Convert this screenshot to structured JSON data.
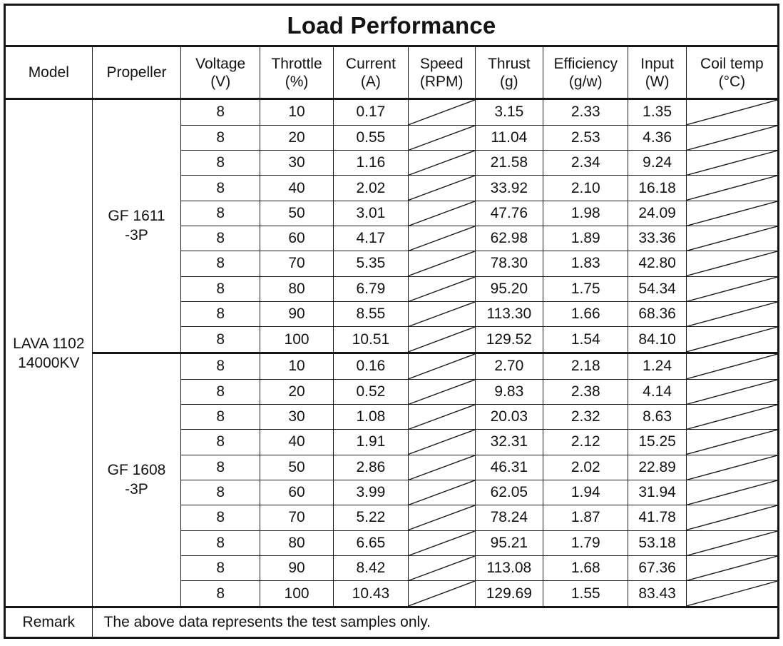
{
  "title": "Load Performance",
  "colors": {
    "border": "#161616",
    "background": "#ffffff",
    "text": "#131313"
  },
  "columns": [
    {
      "label": "Model",
      "unit": ""
    },
    {
      "label": "Propeller",
      "unit": ""
    },
    {
      "label": "Voltage",
      "unit": "(V)"
    },
    {
      "label": "Throttle",
      "unit": "(%)"
    },
    {
      "label": "Current",
      "unit": "(A)"
    },
    {
      "label": "Speed",
      "unit": "(RPM)"
    },
    {
      "label": "Thrust",
      "unit": "(g)"
    },
    {
      "label": "Efficiency",
      "unit": "(g/w)"
    },
    {
      "label": "Input",
      "unit": "(W)"
    },
    {
      "label": "Coil temp",
      "unit": "(°C)"
    }
  ],
  "model": {
    "line1": "LAVA 1102",
    "line2": "14000KV"
  },
  "sections": [
    {
      "propeller": {
        "line1": "GF 1611",
        "line2": "-3P"
      },
      "rows": [
        [
          "8",
          "10",
          "0.17",
          null,
          "3.15",
          "2.33",
          "1.35",
          null
        ],
        [
          "8",
          "20",
          "0.55",
          null,
          "11.04",
          "2.53",
          "4.36",
          null
        ],
        [
          "8",
          "30",
          "1.16",
          null,
          "21.58",
          "2.34",
          "9.24",
          null
        ],
        [
          "8",
          "40",
          "2.02",
          null,
          "33.92",
          "2.10",
          "16.18",
          null
        ],
        [
          "8",
          "50",
          "3.01",
          null,
          "47.76",
          "1.98",
          "24.09",
          null
        ],
        [
          "8",
          "60",
          "4.17",
          null,
          "62.98",
          "1.89",
          "33.36",
          null
        ],
        [
          "8",
          "70",
          "5.35",
          null,
          "78.30",
          "1.83",
          "42.80",
          null
        ],
        [
          "8",
          "80",
          "6.79",
          null,
          "95.20",
          "1.75",
          "54.34",
          null
        ],
        [
          "8",
          "90",
          "8.55",
          null,
          "113.30",
          "1.66",
          "68.36",
          null
        ],
        [
          "8",
          "100",
          "10.51",
          null,
          "129.52",
          "1.54",
          "84.10",
          null
        ]
      ]
    },
    {
      "propeller": {
        "line1": "GF 1608",
        "line2": "-3P"
      },
      "rows": [
        [
          "8",
          "10",
          "0.16",
          null,
          "2.70",
          "2.18",
          "1.24",
          null
        ],
        [
          "8",
          "20",
          "0.52",
          null,
          "9.83",
          "2.38",
          "4.14",
          null
        ],
        [
          "8",
          "30",
          "1.08",
          null,
          "20.03",
          "2.32",
          "8.63",
          null
        ],
        [
          "8",
          "40",
          "1.91",
          null,
          "32.31",
          "2.12",
          "15.25",
          null
        ],
        [
          "8",
          "50",
          "2.86",
          null,
          "46.31",
          "2.02",
          "22.89",
          null
        ],
        [
          "8",
          "60",
          "3.99",
          null,
          "62.05",
          "1.94",
          "31.94",
          null
        ],
        [
          "8",
          "70",
          "5.22",
          null,
          "78.24",
          "1.87",
          "41.78",
          null
        ],
        [
          "8",
          "80",
          "6.65",
          null,
          "95.21",
          "1.79",
          "53.18",
          null
        ],
        [
          "8",
          "90",
          "8.42",
          null,
          "113.08",
          "1.68",
          "67.36",
          null
        ],
        [
          "8",
          "100",
          "10.43",
          null,
          "129.69",
          "1.55",
          "83.43",
          null
        ]
      ]
    }
  ],
  "remark": {
    "label": "Remark",
    "text": "The above data represents the test samples only."
  }
}
